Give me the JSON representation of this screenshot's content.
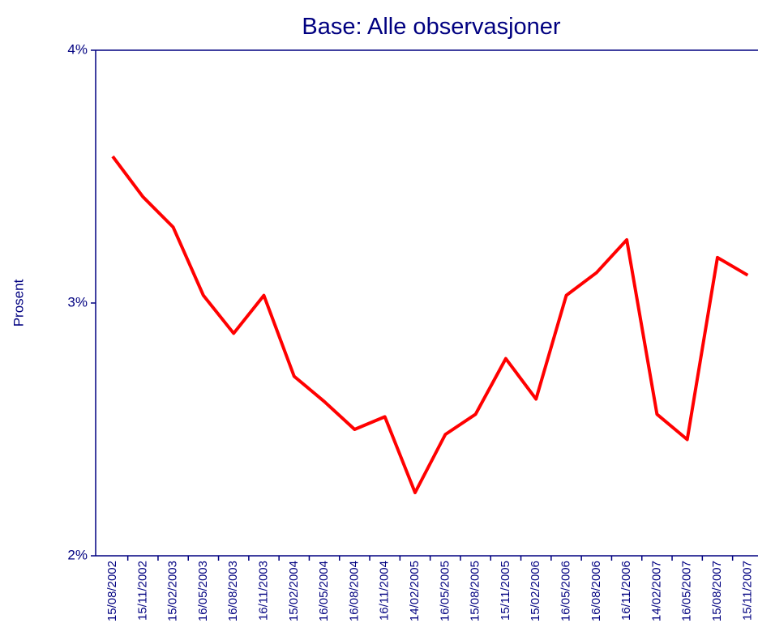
{
  "chart_data": {
    "type": "line",
    "title": "Base: Alle observasjoner",
    "y_label": "Prosent",
    "categories": [
      "15/08/2002",
      "15/11/2002",
      "15/02/2003",
      "16/05/2003",
      "16/08/2003",
      "16/11/2003",
      "15/02/2004",
      "16/05/2004",
      "16/08/2004",
      "16/11/2004",
      "14/02/2005",
      "16/05/2005",
      "15/08/2005",
      "15/11/2005",
      "15/02/2006",
      "16/05/2006",
      "16/08/2006",
      "16/11/2006",
      "14/02/2007",
      "16/05/2007",
      "15/08/2007",
      "15/11/2007"
    ],
    "series": [
      {
        "name": "Prosent",
        "color": "#ff0000",
        "values": [
          3.58,
          3.42,
          3.3,
          3.03,
          2.88,
          3.03,
          2.71,
          2.61,
          2.5,
          2.55,
          2.25,
          2.48,
          2.56,
          2.78,
          2.62,
          3.03,
          3.12,
          3.25,
          2.56,
          2.46,
          3.18,
          3.11
        ]
      }
    ],
    "ylim": [
      2,
      4
    ],
    "yticks": [
      {
        "value": 2,
        "label": "2%"
      },
      {
        "value": 3,
        "label": "3%"
      },
      {
        "value": 4,
        "label": "4%"
      }
    ]
  }
}
